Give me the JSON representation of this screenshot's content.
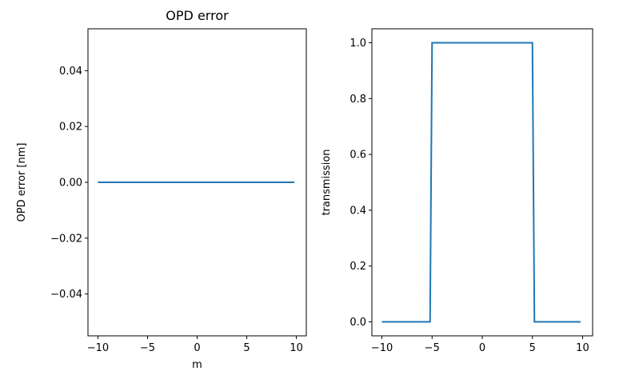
{
  "chart_data": [
    {
      "type": "line",
      "title": "OPD error",
      "xlabel": "m",
      "ylabel": "OPD error [nm]",
      "xlim": [
        -11.0,
        11.0
      ],
      "ylim": [
        -0.055,
        0.055
      ],
      "xticks": [
        -10,
        -5,
        0,
        5,
        10
      ],
      "xtick_labels": [
        "−10",
        "−5",
        "0",
        "5",
        "10"
      ],
      "yticks": [
        -0.04,
        -0.02,
        0.0,
        0.02,
        0.04
      ],
      "ytick_labels": [
        "−0.04",
        "−0.02",
        "0.00",
        "0.02",
        "0.04"
      ],
      "grid": false,
      "series": [
        {
          "x": [
            -10,
            9.8
          ],
          "y": [
            0,
            0
          ],
          "color": "#1f77b4"
        }
      ]
    },
    {
      "type": "line",
      "title": "",
      "xlabel": "",
      "ylabel": "transmission",
      "xlim": [
        -11.0,
        11.0
      ],
      "ylim": [
        -0.05,
        1.05
      ],
      "xticks": [
        -10,
        -5,
        0,
        5,
        10
      ],
      "xtick_labels": [
        "−10",
        "−5",
        "0",
        "5",
        "10"
      ],
      "yticks": [
        0.0,
        0.2,
        0.4,
        0.6,
        0.8,
        1.0
      ],
      "ytick_labels": [
        "0.0",
        "0.2",
        "0.4",
        "0.6",
        "0.8",
        "1.0"
      ],
      "grid": false,
      "series": [
        {
          "x": [
            -10,
            -5.2,
            -5,
            5,
            5.2,
            9.8
          ],
          "y": [
            0,
            0,
            1,
            1,
            0,
            0
          ],
          "color": "#1f77b4"
        }
      ]
    }
  ]
}
